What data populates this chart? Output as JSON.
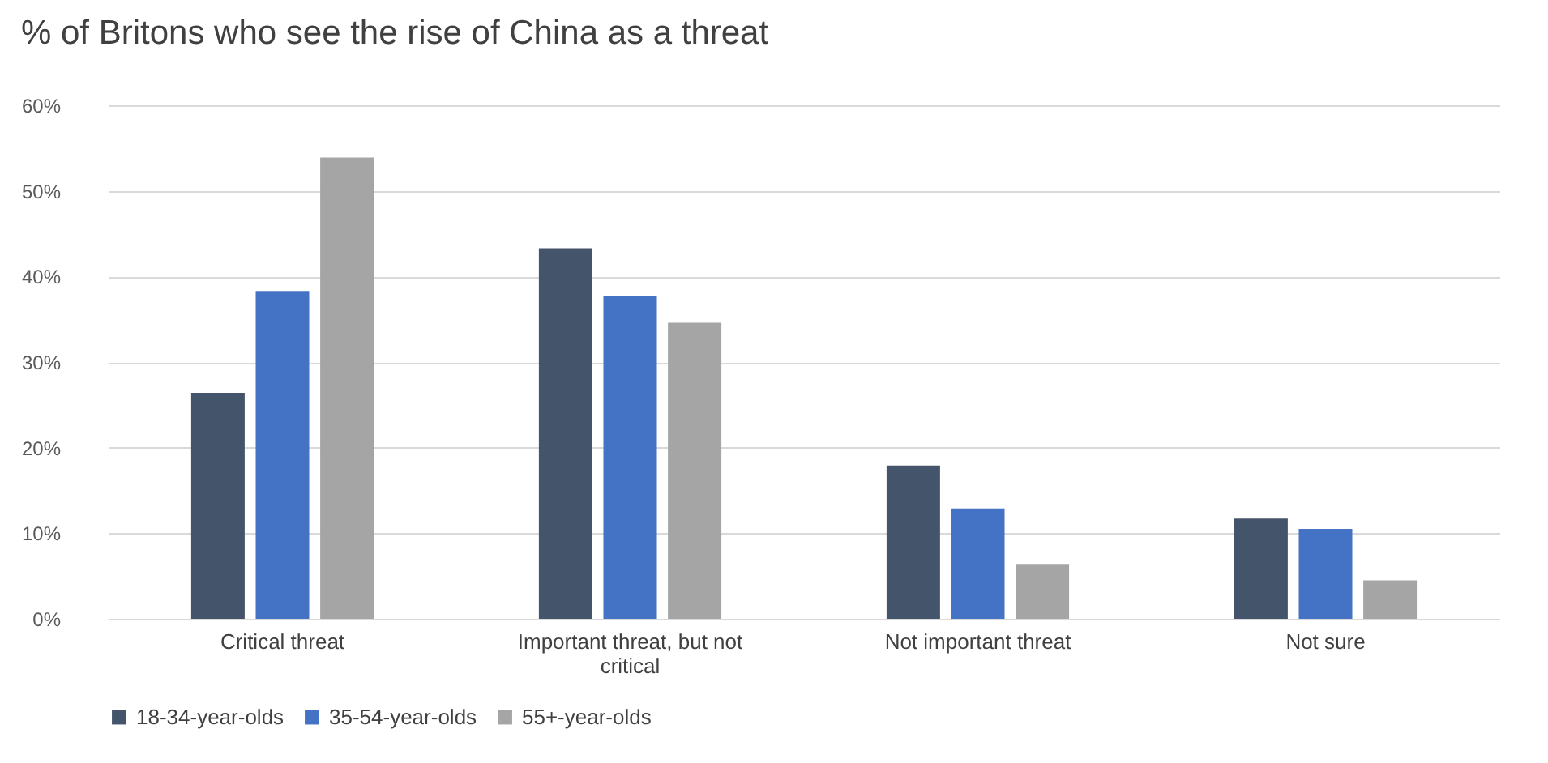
{
  "chart_data": {
    "type": "bar",
    "title": "% of Britons who see the rise of China as a threat",
    "categories": [
      "Critical threat",
      "Important threat, but not critical",
      "Not important threat",
      "Not sure"
    ],
    "series": [
      {
        "name": "18-34-year-olds",
        "color": "#44546a",
        "values": [
          26.4,
          43.3,
          17.9,
          11.7
        ]
      },
      {
        "name": "35-54-year-olds",
        "color": "#4472c4",
        "values": [
          38.3,
          37.7,
          12.9,
          10.5
        ]
      },
      {
        "name": "55+-year-olds",
        "color": "#a5a5a5",
        "values": [
          53.9,
          34.6,
          6.4,
          4.5
        ]
      }
    ],
    "ylim": [
      0,
      60
    ],
    "yticks": [
      {
        "value": 0,
        "label": "0%"
      },
      {
        "value": 10,
        "label": "10%"
      },
      {
        "value": 20,
        "label": "20%"
      },
      {
        "value": 30,
        "label": "30%"
      },
      {
        "value": 40,
        "label": "40%"
      },
      {
        "value": 50,
        "label": "50%"
      },
      {
        "value": 60,
        "label": "60%"
      }
    ],
    "grid": "y",
    "legend": "bottom"
  }
}
